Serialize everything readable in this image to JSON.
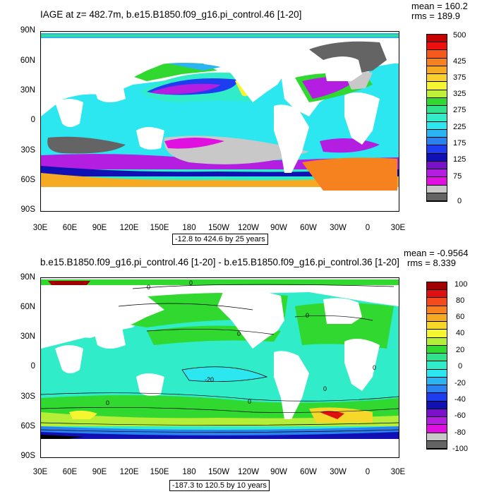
{
  "panel1": {
    "title": "IAGE at z= 482.7m, b.e15.B1850.f09_g16.pi_control.46 [1-20]",
    "mean": "mean = 160.2",
    "rms": "rms = 189.9",
    "range": "-12.8 to 424.6 by 25 years",
    "lat_labels": [
      "90N",
      "60N",
      "30N",
      "0",
      "30S",
      "60S",
      "90S"
    ],
    "lon_labels": [
      "30E",
      "60E",
      "90E",
      "120E",
      "150E",
      "180",
      "150W",
      "120W",
      "90W",
      "60W",
      "30W",
      "0",
      "30E"
    ],
    "legend_labels": [
      "500",
      "425",
      "375",
      "325",
      "275",
      "225",
      "175",
      "125",
      "75",
      "0"
    ],
    "legend_colors": [
      "#c80000",
      "#ee1010",
      "#f55a1c",
      "#f5821e",
      "#f6aa24",
      "#f7d02a",
      "#f6f532",
      "#c0f03a",
      "#30d830",
      "#30e28a",
      "#30ecc8",
      "#2ce6f0",
      "#2cb4f2",
      "#2a82f0",
      "#1e3cf0",
      "#1010b4",
      "#7a10c8",
      "#b41ee0",
      "#e010e0",
      "#c8c8c8",
      "#646464"
    ]
  },
  "panel2": {
    "title": "b.e15.B1850.f09_g16.pi_control.46 [1-20] - b.e15.B1850.f09_g16.pi_control.36 [1-20]",
    "mean": "mean = -0.9564",
    "rms": "rms = 8.339",
    "range": "-187.3 to 120.5 by 10 years",
    "lat_labels": [
      "90N",
      "60N",
      "30N",
      "0",
      "30S",
      "60S",
      "90S"
    ],
    "lon_labels": [
      "30E",
      "60E",
      "90E",
      "120E",
      "150E",
      "180",
      "150W",
      "120W",
      "90W",
      "60W",
      "30W",
      "0",
      "30E"
    ],
    "legend_labels": [
      "100",
      "80",
      "60",
      "40",
      "20",
      "0",
      "-20",
      "-40",
      "-60",
      "-80",
      "-100"
    ],
    "legend_colors": [
      "#a00000",
      "#e01010",
      "#f54a1c",
      "#f5821e",
      "#f6aa24",
      "#f6d82a",
      "#f6f532",
      "#b4ee38",
      "#30d830",
      "#30e28a",
      "#30ecc8",
      "#2ce6f0",
      "#2cb4f2",
      "#2a82f0",
      "#1e3cf0",
      "#1010b4",
      "#7a10c8",
      "#b41ee0",
      "#e010e0",
      "#c8c8c8",
      "#646464"
    ],
    "contour_labels": [
      "0",
      "0",
      "0",
      "0",
      "0",
      "-20",
      "0",
      "0",
      "0"
    ]
  }
}
